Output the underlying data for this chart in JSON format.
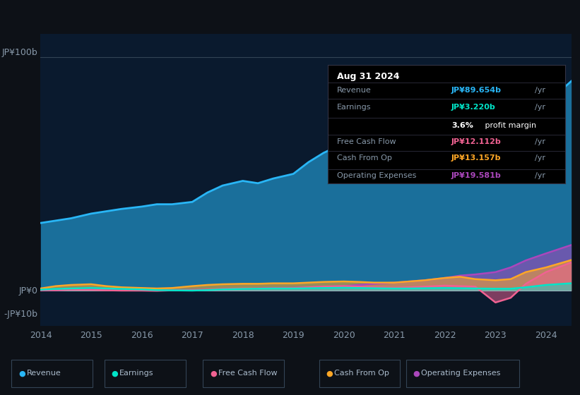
{
  "bg_color": "#0d1117",
  "plot_bg_color": "#0a1a2e",
  "years": [
    2014,
    2014.3,
    2014.6,
    2015,
    2015.3,
    2015.6,
    2016,
    2016.3,
    2016.6,
    2017,
    2017.3,
    2017.6,
    2018,
    2018.3,
    2018.6,
    2019,
    2019.3,
    2019.6,
    2020,
    2020.3,
    2020.6,
    2021,
    2021.3,
    2021.6,
    2022,
    2022.3,
    2022.6,
    2023,
    2023.3,
    2023.6,
    2024,
    2024.5
  ],
  "revenue": [
    29,
    30,
    31,
    33,
    34,
    35,
    36,
    37,
    37,
    38,
    42,
    45,
    47,
    46,
    48,
    50,
    55,
    59,
    63,
    61,
    58,
    56,
    56,
    57,
    55,
    54,
    53,
    53,
    58,
    67,
    80,
    89.654
  ],
  "earnings": [
    0.5,
    0.8,
    1.0,
    1.2,
    1.0,
    0.8,
    0.6,
    0.3,
    0.2,
    0.1,
    0.3,
    0.6,
    0.8,
    0.9,
    1.0,
    1.0,
    1.1,
    1.2,
    1.3,
    1.2,
    1.1,
    1.0,
    1.0,
    1.1,
    1.2,
    1.1,
    1.0,
    0.9,
    0.9,
    1.5,
    2.5,
    3.22
  ],
  "free_cash_flow": [
    0.2,
    0.3,
    0.5,
    0.4,
    0.2,
    0.1,
    0.1,
    0.0,
    0.2,
    0.3,
    0.5,
    0.8,
    1.0,
    1.0,
    1.1,
    1.2,
    1.5,
    1.8,
    2.0,
    1.8,
    1.5,
    1.3,
    1.5,
    1.8,
    2.2,
    2.0,
    1.8,
    -5.0,
    -3.0,
    3.0,
    8.0,
    12.112
  ],
  "cash_from_op": [
    1.0,
    2.0,
    2.5,
    2.8,
    2.0,
    1.5,
    1.2,
    1.0,
    1.2,
    2.0,
    2.5,
    2.8,
    3.0,
    3.0,
    3.2,
    3.2,
    3.5,
    3.8,
    4.0,
    3.8,
    3.5,
    3.5,
    4.0,
    4.5,
    5.5,
    6.0,
    5.0,
    4.5,
    5.0,
    8.0,
    10.0,
    13.157
  ],
  "operating_expenses": [
    0.2,
    0.3,
    0.5,
    0.8,
    0.6,
    0.4,
    0.3,
    0.2,
    0.3,
    0.4,
    0.5,
    0.7,
    0.8,
    1.0,
    1.2,
    1.3,
    1.5,
    1.8,
    2.0,
    2.5,
    3.0,
    3.5,
    4.0,
    4.5,
    5.5,
    6.5,
    7.0,
    8.0,
    10.0,
    13.0,
    16.0,
    19.581
  ],
  "revenue_color": "#29b6f6",
  "earnings_color": "#00e5c8",
  "fcf_color": "#f06292",
  "cashop_color": "#ffa726",
  "opex_color": "#ab47bc",
  "ylim_top": 110,
  "ylim_bottom": -15,
  "xticks": [
    2014,
    2015,
    2016,
    2017,
    2018,
    2019,
    2020,
    2021,
    2022,
    2023,
    2024
  ],
  "info": {
    "date": "Aug 31 2024",
    "revenue_val": "JP¥89.654b",
    "earnings_val": "JP¥3.220b",
    "profit_margin": "3.6%",
    "fcf_val": "JP¥12.112b",
    "cashop_val": "JP¥13.157b",
    "opex_val": "JP¥19.581b"
  },
  "legend_items": [
    "Revenue",
    "Earnings",
    "Free Cash Flow",
    "Cash From Op",
    "Operating Expenses"
  ]
}
